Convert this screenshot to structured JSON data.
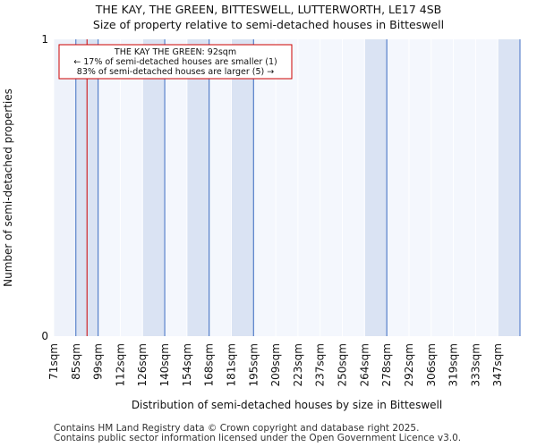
{
  "chart_data": {
    "type": "bar",
    "title": "THE KAY, THE GREEN, BITTESWELL, LUTTERWORTH, LE17 4SB",
    "subtitle": "Size of property relative to semi-detached houses in Bitteswell",
    "xlabel": "Distribution of semi-detached houses by size in Bitteswell",
    "ylabel": "Number of semi-detached properties",
    "categories": [
      "71sqm",
      "85sqm",
      "99sqm",
      "112sqm",
      "126sqm",
      "140sqm",
      "154sqm",
      "168sqm",
      "181sqm",
      "195sqm",
      "209sqm",
      "223sqm",
      "237sqm",
      "250sqm",
      "264sqm",
      "278sqm",
      "292sqm",
      "306sqm",
      "319sqm",
      "333sqm",
      "347sqm"
    ],
    "values": [
      1,
      1,
      0,
      0,
      1,
      0,
      1,
      0,
      1,
      0,
      0,
      0,
      0,
      0,
      1,
      0,
      0,
      0,
      0,
      0,
      1
    ],
    "ylim": [
      0,
      1
    ],
    "yticks": [
      "0",
      "1"
    ],
    "grid": false,
    "colors": {
      "bar_fill": "#dae3f3",
      "bar_alt_fill": "#eef2fa",
      "plot_bg": "#f4f7fd",
      "bar_edge": "#4472c4",
      "marker": "#cc0000",
      "gridline": "#ffffff"
    },
    "marker": {
      "value_sqm": 92,
      "line1": "THE KAY THE GREEN: 92sqm",
      "line2": "← 17% of semi-detached houses are smaller (1)",
      "line3": "83% of semi-detached houses are larger (5) →"
    }
  },
  "footer": {
    "line1": "Contains HM Land Registry data © Crown copyright and database right 2025.",
    "line2": "Contains public sector information licensed under the Open Government Licence v3.0."
  }
}
